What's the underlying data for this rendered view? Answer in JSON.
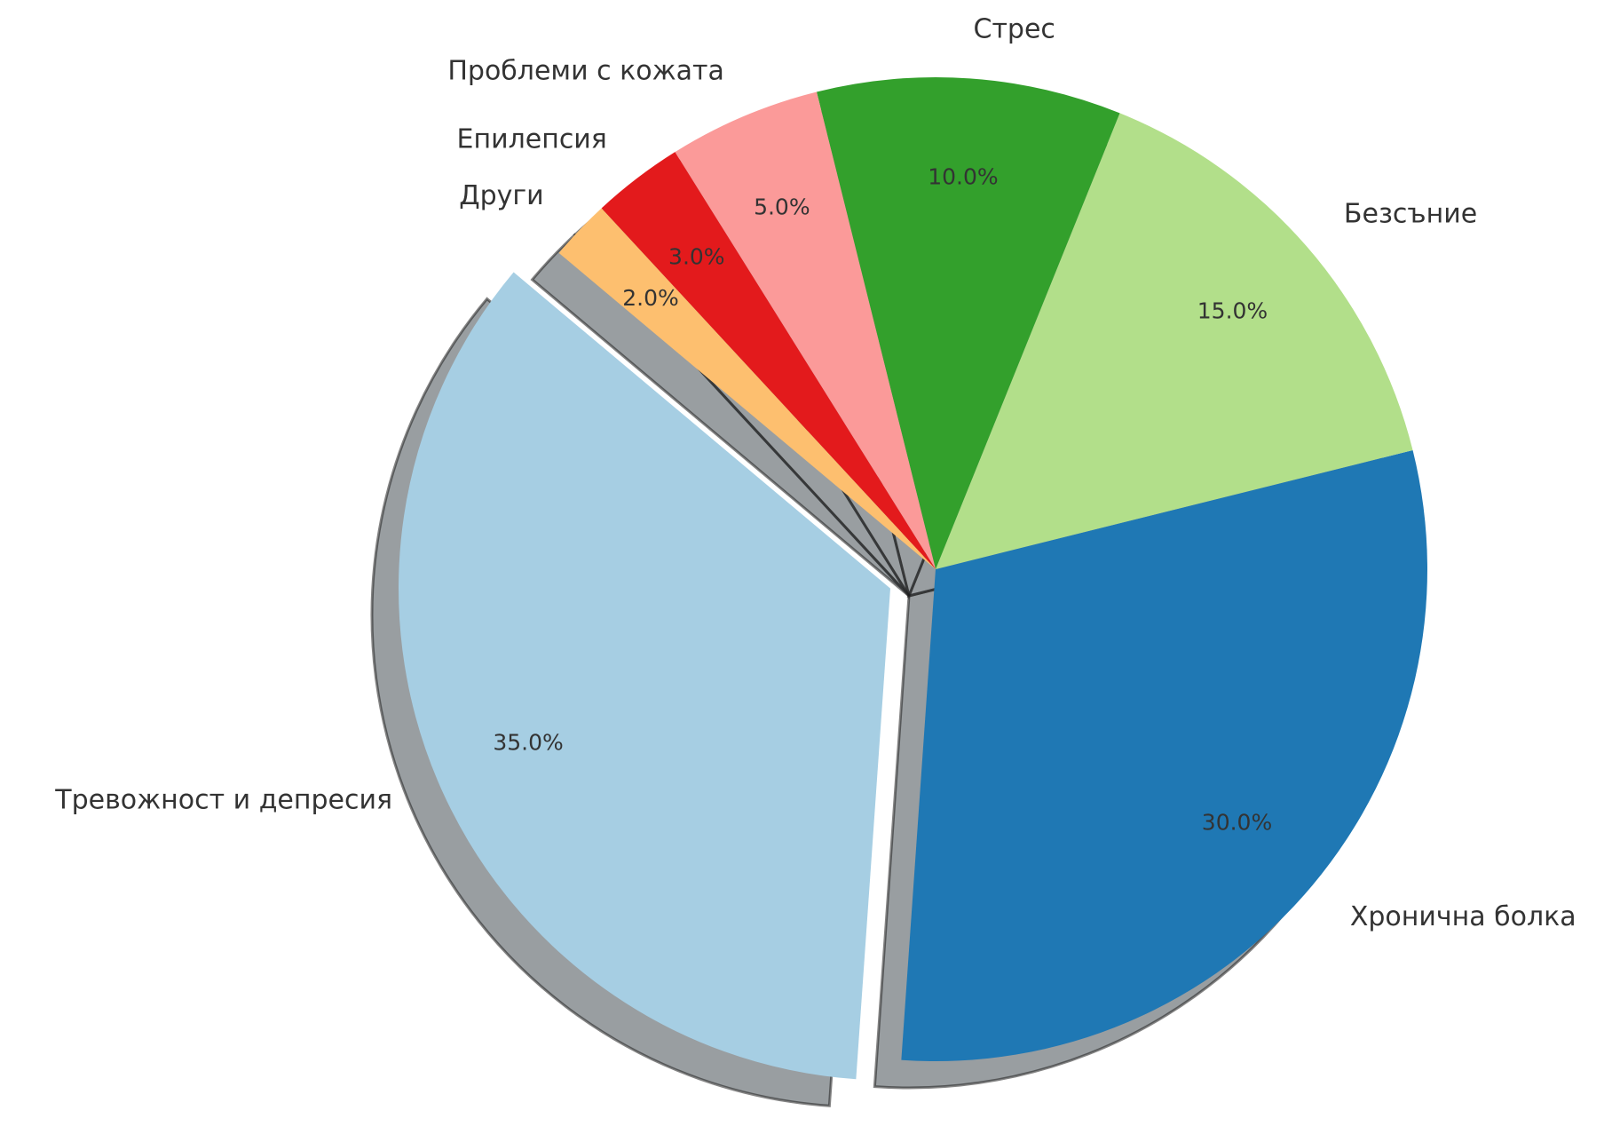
{
  "chart_data": {
    "type": "pie",
    "start_angle_deg": 140,
    "direction": "counterclockwise",
    "shadow": true,
    "explode": [
      0.1,
      0,
      0,
      0,
      0,
      0,
      0
    ],
    "categories": [
      "Тревожност и депресия",
      "Хронична болка",
      "Безсъние",
      "Стрес",
      "Проблеми с кожата",
      "Епилепсия",
      "Други"
    ],
    "values": [
      35.0,
      30.0,
      15.0,
      10.0,
      5.0,
      3.0,
      2.0
    ],
    "value_labels": [
      "35.0%",
      "30.0%",
      "15.0%",
      "10.0%",
      "5.0%",
      "3.0%",
      "2.0%"
    ],
    "colors": [
      "#a6cee3",
      "#1f78b4",
      "#b2df8a",
      "#33a02c",
      "#fb9a99",
      "#e31a1c",
      "#fdbf6f"
    ]
  }
}
